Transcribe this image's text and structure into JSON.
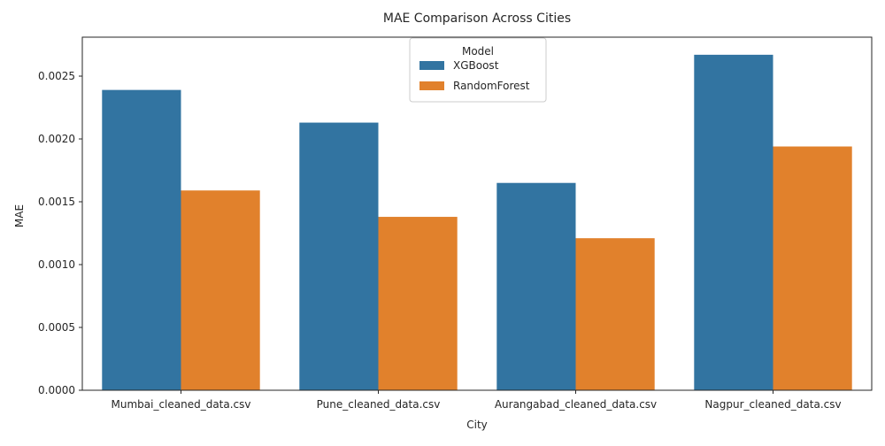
{
  "chart_data": {
    "type": "bar",
    "title": "MAE Comparison Across Cities",
    "xlabel": "City",
    "ylabel": "MAE",
    "categories": [
      "Mumbai_cleaned_data.csv",
      "Pune_cleaned_data.csv",
      "Aurangabad_cleaned_data.csv",
      "Nagpur_cleaned_data.csv"
    ],
    "series": [
      {
        "name": "XGBoost",
        "color": "#3274a1",
        "values": [
          0.00239,
          0.00213,
          0.00165,
          0.00267
        ]
      },
      {
        "name": "RandomForest",
        "color": "#e1812c",
        "values": [
          0.00159,
          0.00138,
          0.00121,
          0.00194
        ]
      }
    ],
    "ylim": [
      0,
      0.00281
    ],
    "yticks": [
      0,
      0.0005,
      0.001,
      0.0015,
      0.002,
      0.0025
    ],
    "ytick_labels": [
      "0.0000",
      "0.0005",
      "0.0010",
      "0.0015",
      "0.0020",
      "0.0025"
    ],
    "grid": false,
    "legend": {
      "title": "Model",
      "placement": "top-center"
    }
  }
}
